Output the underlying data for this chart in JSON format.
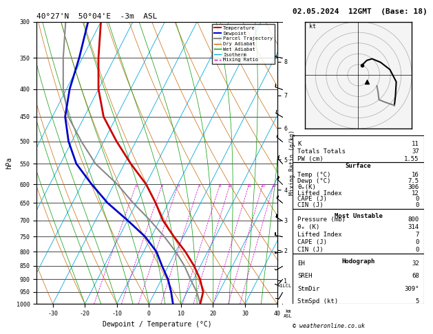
{
  "title_left": "40°27'N  50°04'E  -3m  ASL",
  "title_right": "02.05.2024  12GMT  (Base: 18)",
  "xlabel": "Dewpoint / Temperature (°C)",
  "ylabel_left": "hPa",
  "bg_color": "#ffffff",
  "temp_profile_T": [
    16,
    15,
    12,
    8,
    3,
    -3,
    -9,
    -14,
    -20,
    -28,
    -36,
    -44,
    -50,
    -55,
    -60
  ],
  "temp_profile_P": [
    1000,
    950,
    900,
    850,
    800,
    750,
    700,
    650,
    600,
    550,
    500,
    450,
    400,
    350,
    300
  ],
  "dewp_profile_T": [
    7.5,
    5,
    2,
    -2,
    -6,
    -12,
    -20,
    -29,
    -37,
    -45,
    -51,
    -56,
    -59,
    -61,
    -64
  ],
  "dewp_profile_P": [
    1000,
    950,
    900,
    850,
    800,
    750,
    700,
    650,
    600,
    550,
    500,
    450,
    400,
    350,
    300
  ],
  "parcel_T": [
    16,
    13,
    9,
    5,
    0,
    -6,
    -13,
    -21,
    -29,
    -39,
    -47,
    -55,
    -61,
    -66,
    -71
  ],
  "parcel_P": [
    1000,
    950,
    900,
    850,
    800,
    750,
    700,
    650,
    600,
    550,
    500,
    450,
    400,
    350,
    300
  ],
  "color_temp": "#cc0000",
  "color_dewp": "#0000cc",
  "color_parcel": "#888888",
  "color_dry_adiabat": "#cc6600",
  "color_wet_adiabat": "#009900",
  "color_isotherm": "#00aadd",
  "color_mixing": "#cc00cc",
  "stats": {
    "K": 11,
    "Totals_Totals": 37,
    "PW_cm": 1.55,
    "Surf_Temp": 16,
    "Surf_Dewp": 7.5,
    "Surf_ThetaE": 306,
    "Surf_LI": 12,
    "Surf_CAPE": 0,
    "Surf_CIN": 0,
    "MU_Pressure": 800,
    "MU_ThetaE": 314,
    "MU_LI": 7,
    "MU_CAPE": 0,
    "MU_CIN": 0,
    "EH": 32,
    "SREH": 68,
    "StmDir": 309,
    "StmSpd": 5
  },
  "mixing_ratio_lines": [
    1,
    2,
    3,
    5,
    8,
    10,
    15,
    20,
    25
  ],
  "km_ticks": [
    8,
    7,
    6,
    5,
    4,
    3,
    2,
    1
  ],
  "km_pressures": [
    356,
    411,
    472,
    540,
    615,
    700,
    795,
    905
  ],
  "lcl_pressure": 925,
  "wind_pressures": [
    1000,
    950,
    900,
    850,
    800,
    750,
    700,
    650,
    600,
    550,
    500,
    450,
    400,
    350,
    300
  ],
  "wind_dirs": [
    200,
    210,
    220,
    240,
    260,
    280,
    300,
    310,
    315,
    320,
    310,
    300,
    290,
    280,
    270
  ],
  "wind_speeds": [
    5,
    8,
    10,
    12,
    15,
    18,
    20,
    22,
    18,
    15,
    12,
    10,
    8,
    6,
    5
  ]
}
